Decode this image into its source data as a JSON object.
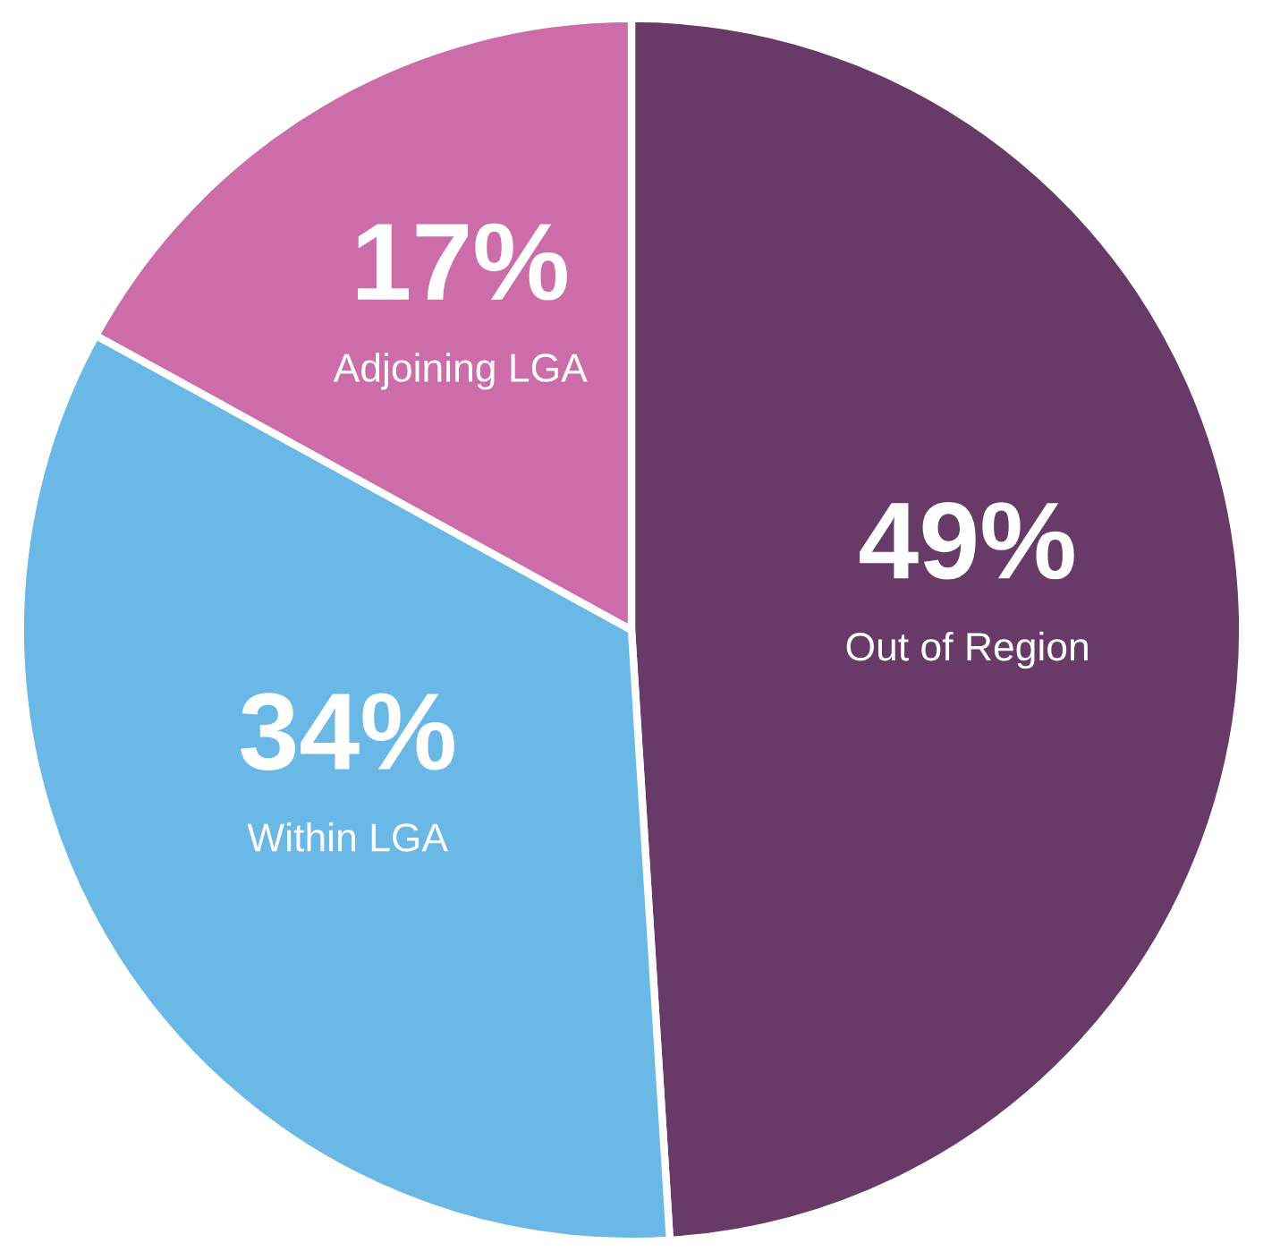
{
  "chart_data": {
    "type": "pie",
    "categories": [
      "Out of Region",
      "Within LGA",
      "Adjoining LGA"
    ],
    "values": [
      49,
      34,
      17
    ],
    "value_labels": [
      "49%",
      "34%",
      "17%"
    ],
    "colors": [
      "#673a67",
      "#6ab8e6",
      "#cc6ca8"
    ]
  }
}
